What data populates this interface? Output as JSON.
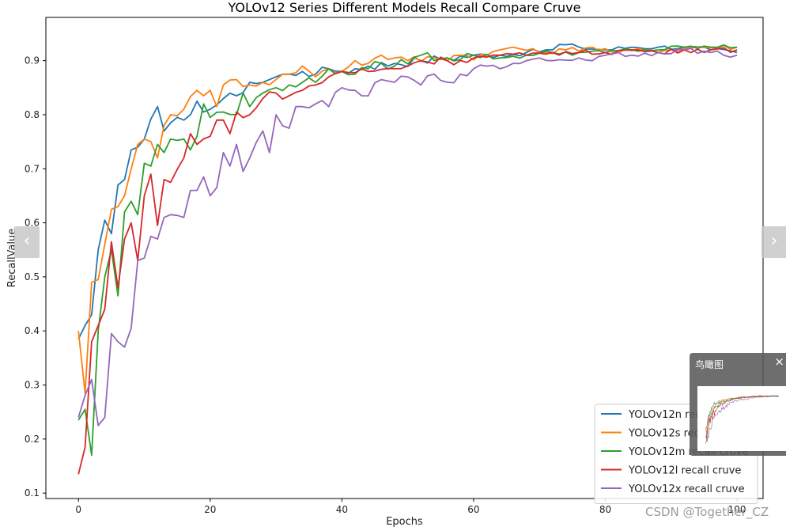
{
  "chart_data": {
    "type": "line",
    "title": "YOLOv12 Series Different Models Recall Compare Cruve",
    "xlabel": "Epochs",
    "ylabel": "RecallValue",
    "xlim": [
      -4.95,
      103.95
    ],
    "ylim": [
      0.09,
      0.98
    ],
    "xticks": [
      0,
      20,
      40,
      60,
      80,
      100
    ],
    "yticks": [
      0.1,
      0.2,
      0.3,
      0.4,
      0.5,
      0.6,
      0.7,
      0.8,
      0.9
    ],
    "xtick_labels": [
      "0",
      "20",
      "40",
      "60",
      "80",
      "100"
    ],
    "ytick_labels": [
      "0.1",
      "0.2",
      "0.3",
      "0.4",
      "0.5",
      "0.6",
      "0.7",
      "0.8",
      "0.9"
    ],
    "legend_position": "lower-right",
    "series": [
      {
        "name": "YOLOv12n recall cruve",
        "color": "#1f77b4",
        "key_points": [
          [
            0,
            0.385
          ],
          [
            1,
            0.41
          ],
          [
            2,
            0.43
          ],
          [
            3,
            0.55
          ],
          [
            4,
            0.605
          ],
          [
            5,
            0.58
          ],
          [
            6,
            0.67
          ],
          [
            7,
            0.68
          ],
          [
            8,
            0.735
          ],
          [
            9,
            0.74
          ],
          [
            10,
            0.755
          ],
          [
            12,
            0.815
          ],
          [
            13,
            0.77
          ],
          [
            14,
            0.785
          ],
          [
            16,
            0.79
          ],
          [
            18,
            0.825
          ],
          [
            19,
            0.805
          ],
          [
            20,
            0.81
          ],
          [
            22,
            0.83
          ],
          [
            24,
            0.835
          ],
          [
            26,
            0.86
          ],
          [
            28,
            0.86
          ],
          [
            30,
            0.87
          ],
          [
            32,
            0.875
          ],
          [
            34,
            0.88
          ],
          [
            36,
            0.875
          ],
          [
            38,
            0.885
          ],
          [
            40,
            0.88
          ],
          [
            44,
            0.89
          ],
          [
            48,
            0.895
          ],
          [
            52,
            0.9
          ],
          [
            56,
            0.905
          ],
          [
            60,
            0.91
          ],
          [
            64,
            0.91
          ],
          [
            68,
            0.915
          ],
          [
            72,
            0.92
          ],
          [
            73,
            0.93
          ],
          [
            76,
            0.925
          ],
          [
            80,
            0.92
          ],
          [
            84,
            0.925
          ],
          [
            88,
            0.925
          ],
          [
            92,
            0.925
          ],
          [
            96,
            0.92
          ],
          [
            100,
            0.915
          ]
        ]
      },
      {
        "name": "YOLOv12s recall cruve",
        "color": "#ff7f0e",
        "key_points": [
          [
            0,
            0.4
          ],
          [
            1,
            0.285
          ],
          [
            2,
            0.49
          ],
          [
            3,
            0.495
          ],
          [
            4,
            0.56
          ],
          [
            5,
            0.625
          ],
          [
            6,
            0.63
          ],
          [
            7,
            0.65
          ],
          [
            8,
            0.7
          ],
          [
            9,
            0.745
          ],
          [
            10,
            0.755
          ],
          [
            11,
            0.75
          ],
          [
            12,
            0.72
          ],
          [
            13,
            0.78
          ],
          [
            14,
            0.8
          ],
          [
            16,
            0.81
          ],
          [
            18,
            0.845
          ],
          [
            19,
            0.835
          ],
          [
            20,
            0.845
          ],
          [
            21,
            0.815
          ],
          [
            22,
            0.855
          ],
          [
            24,
            0.865
          ],
          [
            26,
            0.855
          ],
          [
            28,
            0.86
          ],
          [
            30,
            0.865
          ],
          [
            32,
            0.875
          ],
          [
            34,
            0.89
          ],
          [
            36,
            0.87
          ],
          [
            38,
            0.885
          ],
          [
            40,
            0.88
          ],
          [
            42,
            0.9
          ],
          [
            44,
            0.895
          ],
          [
            46,
            0.91
          ],
          [
            48,
            0.905
          ],
          [
            50,
            0.9
          ],
          [
            54,
            0.905
          ],
          [
            58,
            0.91
          ],
          [
            62,
            0.91
          ],
          [
            64,
            0.92
          ],
          [
            66,
            0.925
          ],
          [
            70,
            0.915
          ],
          [
            74,
            0.92
          ],
          [
            78,
            0.925
          ],
          [
            82,
            0.915
          ],
          [
            86,
            0.92
          ],
          [
            90,
            0.92
          ],
          [
            94,
            0.925
          ],
          [
            100,
            0.925
          ]
        ]
      },
      {
        "name": "YOLOv12m recall cruve",
        "color": "#2ca02c",
        "key_points": [
          [
            0,
            0.235
          ],
          [
            1,
            0.255
          ],
          [
            2,
            0.17
          ],
          [
            3,
            0.4
          ],
          [
            4,
            0.5
          ],
          [
            5,
            0.55
          ],
          [
            6,
            0.465
          ],
          [
            7,
            0.62
          ],
          [
            8,
            0.64
          ],
          [
            9,
            0.615
          ],
          [
            10,
            0.71
          ],
          [
            11,
            0.705
          ],
          [
            12,
            0.745
          ],
          [
            13,
            0.73
          ],
          [
            14,
            0.755
          ],
          [
            16,
            0.755
          ],
          [
            17,
            0.735
          ],
          [
            18,
            0.76
          ],
          [
            19,
            0.82
          ],
          [
            20,
            0.795
          ],
          [
            22,
            0.805
          ],
          [
            24,
            0.8
          ],
          [
            25,
            0.84
          ],
          [
            26,
            0.815
          ],
          [
            28,
            0.84
          ],
          [
            30,
            0.85
          ],
          [
            32,
            0.855
          ],
          [
            34,
            0.86
          ],
          [
            36,
            0.86
          ],
          [
            38,
            0.885
          ],
          [
            40,
            0.88
          ],
          [
            42,
            0.875
          ],
          [
            44,
            0.885
          ],
          [
            46,
            0.895
          ],
          [
            48,
            0.89
          ],
          [
            52,
            0.91
          ],
          [
            56,
            0.905
          ],
          [
            60,
            0.91
          ],
          [
            64,
            0.905
          ],
          [
            68,
            0.91
          ],
          [
            72,
            0.915
          ],
          [
            76,
            0.915
          ],
          [
            80,
            0.915
          ],
          [
            84,
            0.92
          ],
          [
            88,
            0.92
          ],
          [
            92,
            0.925
          ],
          [
            96,
            0.925
          ],
          [
            100,
            0.925
          ]
        ]
      },
      {
        "name": "YOLOv12l recall cruve",
        "color": "#d62728",
        "key_points": [
          [
            0,
            0.135
          ],
          [
            1,
            0.185
          ],
          [
            2,
            0.38
          ],
          [
            3,
            0.41
          ],
          [
            4,
            0.44
          ],
          [
            5,
            0.565
          ],
          [
            6,
            0.48
          ],
          [
            7,
            0.57
          ],
          [
            8,
            0.6
          ],
          [
            9,
            0.53
          ],
          [
            10,
            0.65
          ],
          [
            11,
            0.69
          ],
          [
            12,
            0.595
          ],
          [
            13,
            0.68
          ],
          [
            14,
            0.675
          ],
          [
            16,
            0.72
          ],
          [
            17,
            0.765
          ],
          [
            18,
            0.745
          ],
          [
            20,
            0.76
          ],
          [
            21,
            0.79
          ],
          [
            22,
            0.79
          ],
          [
            23,
            0.765
          ],
          [
            24,
            0.805
          ],
          [
            26,
            0.8
          ],
          [
            28,
            0.83
          ],
          [
            30,
            0.84
          ],
          [
            32,
            0.835
          ],
          [
            34,
            0.845
          ],
          [
            36,
            0.855
          ],
          [
            38,
            0.87
          ],
          [
            40,
            0.88
          ],
          [
            44,
            0.88
          ],
          [
            48,
            0.885
          ],
          [
            52,
            0.9
          ],
          [
            56,
            0.9
          ],
          [
            60,
            0.905
          ],
          [
            64,
            0.91
          ],
          [
            68,
            0.91
          ],
          [
            72,
            0.915
          ],
          [
            76,
            0.915
          ],
          [
            80,
            0.915
          ],
          [
            84,
            0.92
          ],
          [
            88,
            0.915
          ],
          [
            92,
            0.92
          ],
          [
            96,
            0.92
          ],
          [
            100,
            0.92
          ]
        ]
      },
      {
        "name": "YOLOv12x recall cruve",
        "color": "#9467bd",
        "key_points": [
          [
            0,
            0.24
          ],
          [
            2,
            0.31
          ],
          [
            3,
            0.225
          ],
          [
            4,
            0.24
          ],
          [
            5,
            0.395
          ],
          [
            6,
            0.38
          ],
          [
            7,
            0.37
          ],
          [
            8,
            0.405
          ],
          [
            9,
            0.53
          ],
          [
            10,
            0.535
          ],
          [
            11,
            0.575
          ],
          [
            12,
            0.57
          ],
          [
            13,
            0.61
          ],
          [
            14,
            0.615
          ],
          [
            16,
            0.61
          ],
          [
            17,
            0.66
          ],
          [
            18,
            0.66
          ],
          [
            19,
            0.685
          ],
          [
            20,
            0.65
          ],
          [
            21,
            0.665
          ],
          [
            22,
            0.73
          ],
          [
            23,
            0.705
          ],
          [
            24,
            0.745
          ],
          [
            25,
            0.695
          ],
          [
            26,
            0.72
          ],
          [
            28,
            0.77
          ],
          [
            29,
            0.73
          ],
          [
            30,
            0.8
          ],
          [
            32,
            0.775
          ],
          [
            33,
            0.815
          ],
          [
            34,
            0.815
          ],
          [
            36,
            0.82
          ],
          [
            38,
            0.815
          ],
          [
            40,
            0.85
          ],
          [
            42,
            0.845
          ],
          [
            44,
            0.835
          ],
          [
            46,
            0.865
          ],
          [
            48,
            0.86
          ],
          [
            50,
            0.87
          ],
          [
            52,
            0.855
          ],
          [
            54,
            0.875
          ],
          [
            56,
            0.86
          ],
          [
            58,
            0.875
          ],
          [
            60,
            0.885
          ],
          [
            62,
            0.89
          ],
          [
            64,
            0.885
          ],
          [
            66,
            0.895
          ],
          [
            68,
            0.9
          ],
          [
            70,
            0.905
          ],
          [
            72,
            0.9
          ],
          [
            76,
            0.905
          ],
          [
            78,
            0.9
          ],
          [
            80,
            0.91
          ],
          [
            82,
            0.915
          ],
          [
            84,
            0.91
          ],
          [
            88,
            0.915
          ],
          [
            92,
            0.92
          ],
          [
            96,
            0.915
          ],
          [
            100,
            0.91
          ]
        ]
      }
    ]
  },
  "ui": {
    "nav_prev_glyph": "‹",
    "nav_next_glyph": "›",
    "birdview_title": "鸟瞰图",
    "birdview_close": "×",
    "watermark": "CSDN @Together_CZ"
  }
}
